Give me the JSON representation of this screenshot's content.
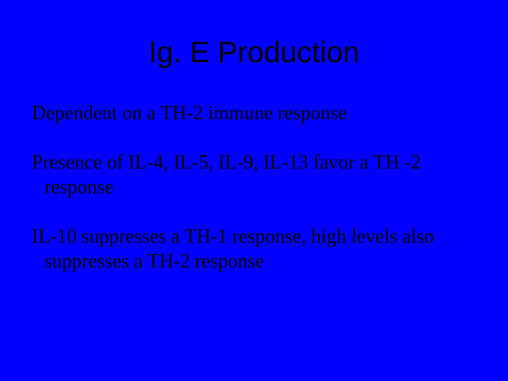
{
  "slide": {
    "background_color": "#0000ff",
    "text_color": "#000000",
    "title": {
      "text": "Ig. E Production",
      "font_family": "Arial",
      "font_size": 42,
      "font_weight": "normal",
      "align": "center"
    },
    "paragraphs": [
      {
        "text": "Dependent on a TH-2 immune response",
        "font_family": "Times New Roman",
        "font_size": 28
      },
      {
        "text": "Presence of IL-4, IL-5, IL-9, IL-13 favor a TH -2 response",
        "font_family": "Times New Roman",
        "font_size": 28
      },
      {
        "text": "IL-10 suppresses a TH-1 response, high levels also suppresses a TH-2 response",
        "font_family": "Times New Roman",
        "font_size": 28
      }
    ]
  }
}
